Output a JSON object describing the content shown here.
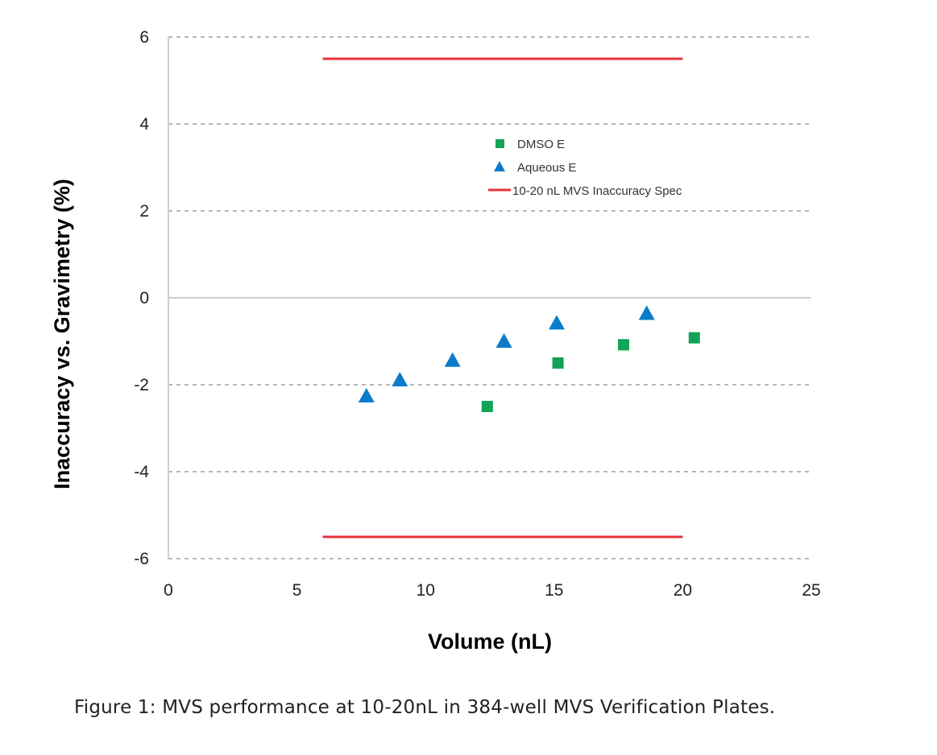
{
  "chart_data": {
    "type": "scatter",
    "xlabel": "Volume (nL)",
    "ylabel": "Inaccuracy vs. Gravimetry (%)",
    "xlim": [
      0,
      25
    ],
    "ylim": [
      -6,
      6
    ],
    "xticks": [
      0,
      5,
      10,
      15,
      20,
      25
    ],
    "yticks": [
      -6,
      -4,
      -2,
      0,
      2,
      4,
      6
    ],
    "grid": true,
    "legend_position": "top-center",
    "series": [
      {
        "name": "DMSO E",
        "marker": "square",
        "color": "#12a356",
        "points": [
          [
            12.4,
            -2.5
          ],
          [
            15.15,
            -1.5
          ],
          [
            17.7,
            -1.08
          ],
          [
            20.45,
            -0.92
          ]
        ]
      },
      {
        "name": "Aqueous E",
        "marker": "triangle",
        "color": "#0a7cc9",
        "points": [
          [
            7.7,
            -2.26
          ],
          [
            9.0,
            -1.89
          ],
          [
            11.05,
            -1.44
          ],
          [
            13.05,
            -1.0
          ],
          [
            15.1,
            -0.58
          ],
          [
            18.6,
            -0.36
          ]
        ]
      },
      {
        "name": "10-20 nL MVS Inaccuracy Spec",
        "marker": "line",
        "color": "#e8323a",
        "lines": [
          [
            [
              6,
              5.5
            ],
            [
              20,
              5.5
            ]
          ],
          [
            [
              6,
              -5.5
            ],
            [
              20,
              -5.5
            ]
          ]
        ]
      }
    ]
  },
  "caption": "Figure 1: MVS performance at 10-20nL in 384-well MVS Verification Plates."
}
